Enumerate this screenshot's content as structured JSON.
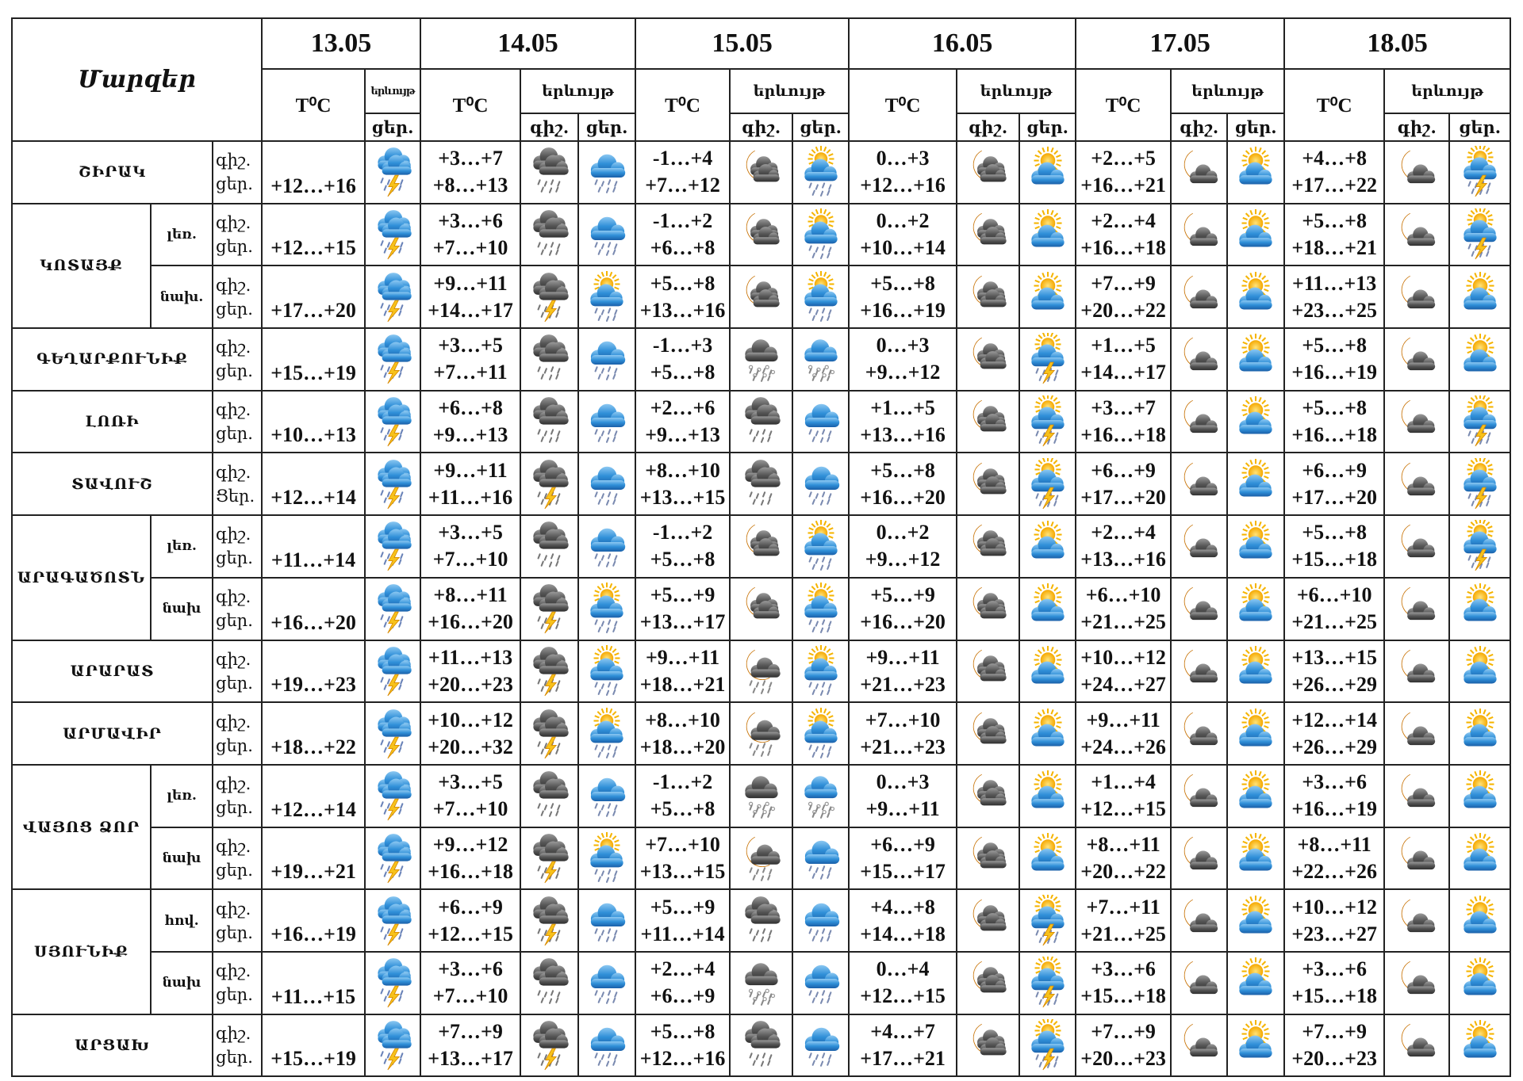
{
  "header": {
    "regions_label": "Մարզեր",
    "temp_label": "T⁰C",
    "phenomenon_label": "երևույթ",
    "night_label": "գիշ.",
    "day_label": "ցեր.",
    "dates": [
      "13.05",
      "14.05",
      "15.05",
      "16.05",
      "17.05",
      "18.05"
    ]
  },
  "colors": {
    "border": "#222222",
    "cloud_blue": "#2f8fd8",
    "cloud_dark": "#4f4f4f",
    "sun": "#f5b400",
    "moon": "#f0a020",
    "bolt": "#f7c21b"
  },
  "regions": [
    {
      "name": "ՇԻՐԱԿ",
      "rows": [
        {
          "sub": "",
          "labels": [
            "գիշ.",
            "ցեր."
          ],
          "d13": {
            "day": "+12…+16",
            "icon": "cloud-rain-thunder"
          },
          "days": [
            {
              "night": "+3…+7",
              "day": "+8…+13",
              "icon_night": "dark-cloud-rain",
              "icon_day": "blue-cloud-rain"
            },
            {
              "night": "-1…+4",
              "day": "+7…+12",
              "icon_night": "moon-clouds",
              "icon_day": "sun-cloud-rain"
            },
            {
              "night": "0…+3",
              "day": "+12…+16",
              "icon_night": "moon-clouds",
              "icon_day": "sun-cloud"
            },
            {
              "night": "+2…+5",
              "day": "+16…+21",
              "icon_night": "moon-cloud",
              "icon_day": "sun-cloud"
            },
            {
              "night": "+4…+8",
              "day": "+17…+22",
              "icon_night": "moon-cloud",
              "icon_day": "sun-cloud-thunder"
            }
          ]
        }
      ]
    },
    {
      "name": "ԿՈՏԱՅՔ",
      "rows": [
        {
          "sub": "լեռ.",
          "labels": [
            "գիշ.",
            "ցեր."
          ],
          "d13": {
            "day": "+12…+15",
            "icon": "cloud-rain-thunder"
          },
          "days": [
            {
              "night": "+3…+6",
              "day": "+7…+10",
              "icon_night": "dark-cloud-rain",
              "icon_day": "blue-cloud-rain"
            },
            {
              "night": "-1…+2",
              "day": "+6…+8",
              "icon_night": "moon-clouds",
              "icon_day": "sun-cloud-rain"
            },
            {
              "night": "0…+2",
              "day": "+10…+14",
              "icon_night": "moon-clouds",
              "icon_day": "sun-cloud"
            },
            {
              "night": "+2…+4",
              "day": "+16…+18",
              "icon_night": "moon-cloud",
              "icon_day": "sun-cloud"
            },
            {
              "night": "+5…+8",
              "day": "+18…+21",
              "icon_night": "moon-cloud",
              "icon_day": "sun-cloud-thunder"
            }
          ]
        },
        {
          "sub": "նախ.",
          "labels": [
            "գիշ.",
            "ցեր."
          ],
          "d13": {
            "day": "+17…+20",
            "icon": "cloud-rain-thunder"
          },
          "days": [
            {
              "night": "+9…+11",
              "day": "+14…+17",
              "icon_night": "dark-cloud-thunder",
              "icon_day": "sun-cloud-rain"
            },
            {
              "night": "+5…+8",
              "day": "+13…+16",
              "icon_night": "moon-clouds",
              "icon_day": "sun-cloud-rain"
            },
            {
              "night": "+5…+8",
              "day": "+16…+19",
              "icon_night": "moon-clouds",
              "icon_day": "sun-cloud"
            },
            {
              "night": "+7…+9",
              "day": "+20…+22",
              "icon_night": "moon-cloud",
              "icon_day": "sun-cloud"
            },
            {
              "night": "+11…+13",
              "day": "+23…+25",
              "icon_night": "moon-cloud",
              "icon_day": "sun-cloud"
            }
          ]
        }
      ]
    },
    {
      "name": "ԳԵՂԱՐՔՈՒՆԻՔ",
      "rows": [
        {
          "sub": "",
          "labels": [
            "գիշ.",
            "ցեր."
          ],
          "d13": {
            "day": "+15…+19",
            "icon": "cloud-rain-thunder"
          },
          "days": [
            {
              "night": "+3…+5",
              "day": "+7…+11",
              "icon_night": "dark-cloud-rain",
              "icon_day": "blue-cloud-rain"
            },
            {
              "night": "-1…+3",
              "day": "+5…+8",
              "icon_night": "dark-cloud-sleet",
              "icon_day": "blue-cloud-sleet"
            },
            {
              "night": "0…+3",
              "day": "+9…+12",
              "icon_night": "moon-clouds",
              "icon_day": "sun-cloud-thunder"
            },
            {
              "night": "+1…+5",
              "day": "+14…+17",
              "icon_night": "moon-cloud",
              "icon_day": "sun-cloud"
            },
            {
              "night": "+5…+8",
              "day": "+16…+19",
              "icon_night": "moon-cloud",
              "icon_day": "sun-cloud"
            }
          ]
        }
      ]
    },
    {
      "name": "ԼՈՌԻ",
      "rows": [
        {
          "sub": "",
          "labels": [
            "գիշ.",
            "ցեր."
          ],
          "d13": {
            "day": "+10…+13",
            "icon": "cloud-rain-thunder"
          },
          "days": [
            {
              "night": "+6…+8",
              "day": "+9…+13",
              "icon_night": "dark-cloud-rain",
              "icon_day": "blue-cloud-rain"
            },
            {
              "night": "+2…+6",
              "day": "+9…+13",
              "icon_night": "dark-cloud-rain",
              "icon_day": "blue-cloud-rain"
            },
            {
              "night": "+1…+5",
              "day": "+13…+16",
              "icon_night": "moon-clouds",
              "icon_day": "sun-cloud-thunder"
            },
            {
              "night": "+3…+7",
              "day": "+16…+18",
              "icon_night": "moon-cloud",
              "icon_day": "sun-cloud"
            },
            {
              "night": "+5…+8",
              "day": "+16…+18",
              "icon_night": "moon-cloud",
              "icon_day": "sun-cloud-thunder"
            }
          ]
        }
      ]
    },
    {
      "name": "ՏԱՎՈՒՇ",
      "rows": [
        {
          "sub": "",
          "labels": [
            "գիշ.",
            "Ցեր."
          ],
          "d13": {
            "day": "+12…+14",
            "icon": "cloud-rain-thunder"
          },
          "days": [
            {
              "night": "+9…+11",
              "day": "+11…+16",
              "icon_night": "dark-cloud-thunder",
              "icon_day": "blue-cloud-rain"
            },
            {
              "night": "+8…+10",
              "day": "+13…+15",
              "icon_night": "dark-cloud-rain",
              "icon_day": "blue-cloud-rain"
            },
            {
              "night": "+5…+8",
              "day": "+16…+20",
              "icon_night": "moon-clouds",
              "icon_day": "sun-cloud-thunder"
            },
            {
              "night": "+6…+9",
              "day": "+17…+20",
              "icon_night": "moon-cloud",
              "icon_day": "sun-cloud"
            },
            {
              "night": "+6…+9",
              "day": "+17…+20",
              "icon_night": "moon-cloud",
              "icon_day": "sun-cloud-thunder"
            }
          ]
        }
      ]
    },
    {
      "name": "ԱՐԱԳԱԾՈՏՆ",
      "rows": [
        {
          "sub": "լեռ.",
          "labels": [
            "գիշ.",
            "ցեր."
          ],
          "d13": {
            "day": "+11…+14",
            "icon": "cloud-rain-thunder"
          },
          "days": [
            {
              "night": "+3…+5",
              "day": "+7…+10",
              "icon_night": "dark-cloud-rain",
              "icon_day": "blue-cloud-rain"
            },
            {
              "night": "-1…+2",
              "day": "+5…+8",
              "icon_night": "moon-clouds",
              "icon_day": "sun-cloud-rain"
            },
            {
              "night": "0…+2",
              "day": "+9…+12",
              "icon_night": "moon-clouds",
              "icon_day": "sun-cloud"
            },
            {
              "night": "+2…+4",
              "day": "+13…+16",
              "icon_night": "moon-cloud",
              "icon_day": "sun-cloud"
            },
            {
              "night": "+5…+8",
              "day": "+15…+18",
              "icon_night": "moon-cloud",
              "icon_day": "sun-cloud-thunder"
            }
          ]
        },
        {
          "sub": "նախ",
          "labels": [
            "գիշ.",
            "ցեր."
          ],
          "d13": {
            "day": "+16…+20",
            "icon": "cloud-rain-thunder"
          },
          "days": [
            {
              "night": "+8…+11",
              "day": "+16…+20",
              "icon_night": "dark-cloud-thunder",
              "icon_day": "sun-cloud-rain"
            },
            {
              "night": "+5…+9",
              "day": "+13…+17",
              "icon_night": "moon-clouds",
              "icon_day": "sun-cloud-rain"
            },
            {
              "night": "+5…+9",
              "day": "+16…+20",
              "icon_night": "moon-clouds",
              "icon_day": "sun-cloud"
            },
            {
              "night": "+6…+10",
              "day": "+21…+25",
              "icon_night": "moon-cloud",
              "icon_day": "sun-cloud"
            },
            {
              "night": "+6…+10",
              "day": "+21…+25",
              "icon_night": "moon-cloud",
              "icon_day": "sun-cloud"
            }
          ]
        }
      ]
    },
    {
      "name": "ԱՐԱՐԱՏ",
      "rows": [
        {
          "sub": "",
          "labels": [
            "գիշ.",
            "ցեր."
          ],
          "d13": {
            "day": "+19…+23",
            "icon": "cloud-rain-thunder"
          },
          "days": [
            {
              "night": "+11…+13",
              "day": "+20…+23",
              "icon_night": "dark-cloud-thunder",
              "icon_day": "sun-cloud-rain"
            },
            {
              "night": "+9…+11",
              "day": "+18…+21",
              "icon_night": "moon-cloud-rain",
              "icon_day": "sun-cloud-rain"
            },
            {
              "night": "+9…+11",
              "day": "+21…+23",
              "icon_night": "moon-clouds",
              "icon_day": "sun-cloud"
            },
            {
              "night": "+10…+12",
              "day": "+24…+27",
              "icon_night": "moon-cloud",
              "icon_day": "sun-cloud"
            },
            {
              "night": "+13…+15",
              "day": "+26…+29",
              "icon_night": "moon-cloud",
              "icon_day": "sun-cloud"
            }
          ]
        }
      ]
    },
    {
      "name": "ԱՐՄԱՎԻՐ",
      "rows": [
        {
          "sub": "",
          "labels": [
            "գիշ.",
            "ցեր."
          ],
          "d13": {
            "day": "+18…+22",
            "icon": "cloud-rain-thunder"
          },
          "days": [
            {
              "night": "+10…+12",
              "day": "+20…+32",
              "icon_night": "dark-cloud-thunder",
              "icon_day": "sun-cloud-rain"
            },
            {
              "night": "+8…+10",
              "day": "+18…+20",
              "icon_night": "moon-cloud-rain",
              "icon_day": "sun-cloud-rain"
            },
            {
              "night": "+7…+10",
              "day": "+21…+23",
              "icon_night": "moon-clouds",
              "icon_day": "sun-cloud"
            },
            {
              "night": "+9…+11",
              "day": "+24…+26",
              "icon_night": "moon-cloud",
              "icon_day": "sun-cloud"
            },
            {
              "night": "+12…+14",
              "day": "+26…+29",
              "icon_night": "moon-cloud",
              "icon_day": "sun-cloud"
            }
          ]
        }
      ]
    },
    {
      "name": "ՎԱՅՈՑ ՁՈՐ",
      "rows": [
        {
          "sub": "լեռ.",
          "labels": [
            "գիշ.",
            "ցեր."
          ],
          "d13": {
            "day": "+12…+14",
            "icon": "cloud-rain-thunder"
          },
          "days": [
            {
              "night": "+3…+5",
              "day": "+7…+10",
              "icon_night": "dark-cloud-rain",
              "icon_day": "blue-cloud-rain"
            },
            {
              "night": "-1…+2",
              "day": "+5…+8",
              "icon_night": "dark-cloud-sleet",
              "icon_day": "blue-cloud-sleet"
            },
            {
              "night": "0…+3",
              "day": "+9…+11",
              "icon_night": "moon-clouds",
              "icon_day": "sun-cloud"
            },
            {
              "night": "+1…+4",
              "day": "+12…+15",
              "icon_night": "moon-cloud",
              "icon_day": "sun-cloud"
            },
            {
              "night": "+3…+6",
              "day": "+16…+19",
              "icon_night": "moon-cloud",
              "icon_day": "sun-cloud"
            }
          ]
        },
        {
          "sub": "նախ",
          "labels": [
            "գիշ.",
            "ցեր."
          ],
          "d13": {
            "day": "+19…+21",
            "icon": "cloud-rain-thunder"
          },
          "days": [
            {
              "night": "+9…+12",
              "day": "+16…+18",
              "icon_night": "dark-cloud-thunder",
              "icon_day": "sun-cloud-rain"
            },
            {
              "night": "+7…+10",
              "day": "+13…+15",
              "icon_night": "moon-cloud-rain",
              "icon_day": "blue-cloud-rain"
            },
            {
              "night": "+6…+9",
              "day": "+15…+17",
              "icon_night": "moon-clouds",
              "icon_day": "sun-cloud"
            },
            {
              "night": "+8…+11",
              "day": "+20…+22",
              "icon_night": "moon-cloud",
              "icon_day": "sun-cloud"
            },
            {
              "night": "+8…+11",
              "day": "+22…+26",
              "icon_night": "moon-cloud",
              "icon_day": "sun-cloud"
            }
          ]
        }
      ]
    },
    {
      "name": "ՍՅՈՒՆԻՔ",
      "rows": [
        {
          "sub": "հով.",
          "labels": [
            "գիշ.",
            "ցեր."
          ],
          "d13": {
            "day": "+16…+19",
            "icon": "cloud-rain-thunder"
          },
          "days": [
            {
              "night": "+6…+9",
              "day": "+12…+15",
              "icon_night": "dark-cloud-thunder",
              "icon_day": "blue-cloud-rain"
            },
            {
              "night": "+5…+9",
              "day": "+11…+14",
              "icon_night": "dark-cloud-rain",
              "icon_day": "blue-cloud-rain"
            },
            {
              "night": "+4…+8",
              "day": "+14…+18",
              "icon_night": "moon-clouds",
              "icon_day": "sun-cloud-thunder"
            },
            {
              "night": "+7…+11",
              "day": "+21…+25",
              "icon_night": "moon-cloud",
              "icon_day": "sun-cloud"
            },
            {
              "night": "+10…+12",
              "day": "+23…+27",
              "icon_night": "moon-cloud",
              "icon_day": "sun-cloud"
            }
          ]
        },
        {
          "sub": "նախ",
          "labels": [
            "գիշ.",
            "ցեր."
          ],
          "d13": {
            "day": "+11…+15",
            "icon": "cloud-rain-thunder"
          },
          "days": [
            {
              "night": "+3…+6",
              "day": "+7…+10",
              "icon_night": "dark-cloud-rain",
              "icon_day": "blue-cloud-rain"
            },
            {
              "night": "+2…+4",
              "day": "+6…+9",
              "icon_night": "dark-cloud-sleet",
              "icon_day": "blue-cloud-rain"
            },
            {
              "night": "0…+4",
              "day": "+12…+15",
              "icon_night": "moon-clouds",
              "icon_day": "sun-cloud-thunder"
            },
            {
              "night": "+3…+6",
              "day": "+15…+18",
              "icon_night": "moon-cloud",
              "icon_day": "sun-cloud"
            },
            {
              "night": "+3…+6",
              "day": "+15…+18",
              "icon_night": "moon-cloud",
              "icon_day": "sun-cloud"
            }
          ]
        }
      ]
    },
    {
      "name": "ԱՐՑԱԽ",
      "rows": [
        {
          "sub": "",
          "labels": [
            "գիշ.",
            "ցեր."
          ],
          "d13": {
            "day": "+15…+19",
            "icon": "cloud-rain-thunder"
          },
          "days": [
            {
              "night": "+7…+9",
              "day": "+13…+17",
              "icon_night": "dark-cloud-thunder",
              "icon_day": "blue-cloud-rain"
            },
            {
              "night": "+5…+8",
              "day": "+12…+16",
              "icon_night": "dark-cloud-rain",
              "icon_day": "blue-cloud-rain"
            },
            {
              "night": "+4…+7",
              "day": "+17…+21",
              "icon_night": "moon-clouds",
              "icon_day": "sun-cloud-thunder"
            },
            {
              "night": "+7…+9",
              "day": "+20…+23",
              "icon_night": "moon-cloud",
              "icon_day": "sun-cloud"
            },
            {
              "night": "+7…+9",
              "day": "+20…+23",
              "icon_night": "moon-cloud",
              "icon_day": "sun-cloud"
            }
          ]
        }
      ]
    }
  ]
}
